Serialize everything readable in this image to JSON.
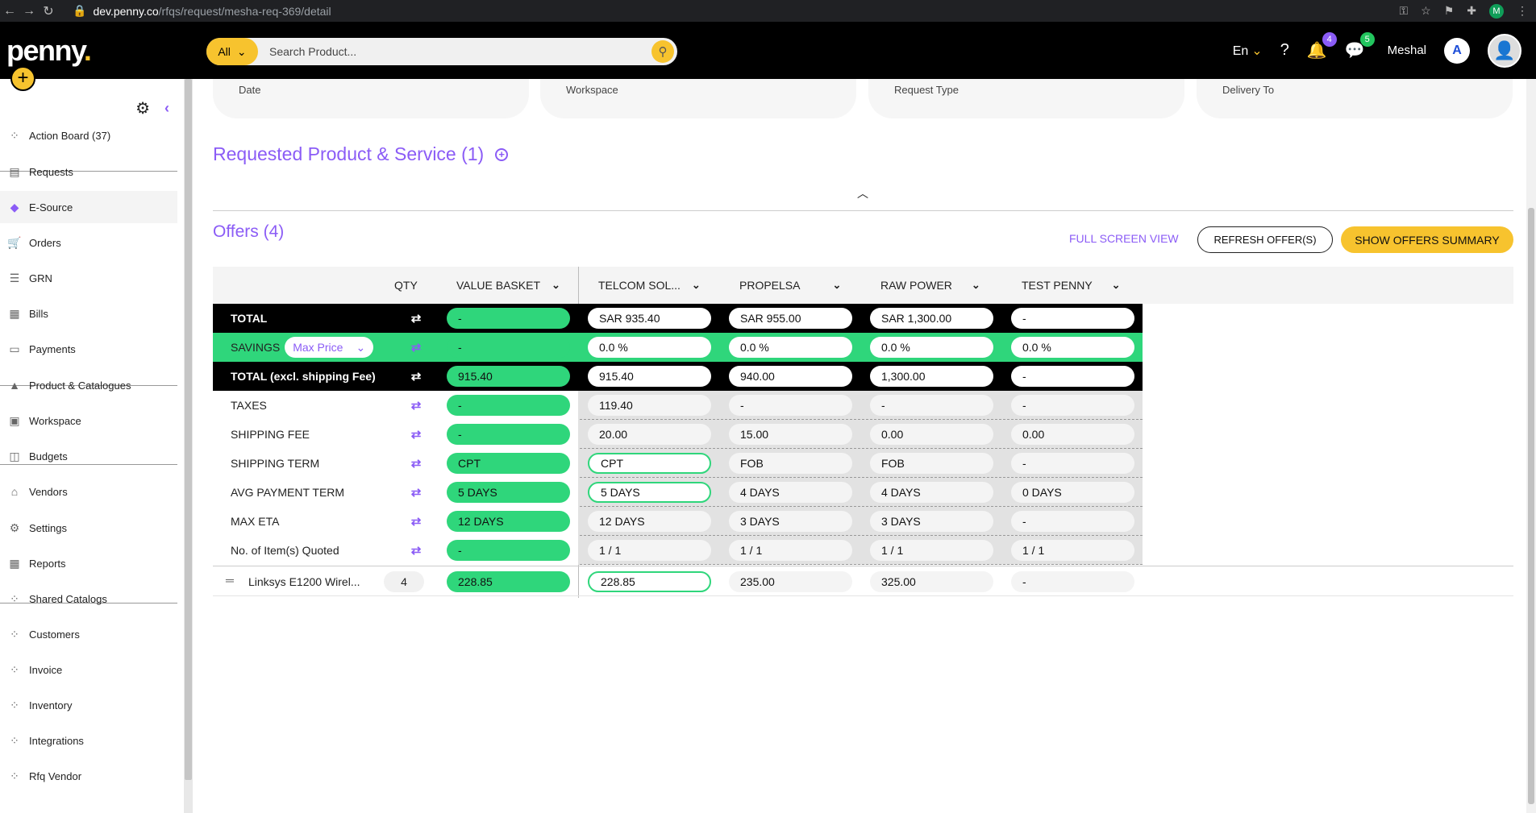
{
  "browser": {
    "url_host": "dev.penny.co",
    "url_path": "/rfqs/request/mesha-req-369/detail",
    "profile_initial": "M"
  },
  "app": {
    "logo": "penny",
    "search": {
      "category": "All",
      "placeholder": "Search Product..."
    },
    "language": "En",
    "notifications_count": "4",
    "messages_count": "5",
    "user_name": "Meshal"
  },
  "sidebar": {
    "items": [
      {
        "label": "Action Board (37)",
        "icon": "dots-icon"
      },
      {
        "label": "Requests",
        "icon": "document-icon"
      },
      {
        "label": "E-Source",
        "icon": "tag-icon"
      },
      {
        "label": "Orders",
        "icon": "cart-icon"
      },
      {
        "label": "GRN",
        "icon": "list-icon"
      },
      {
        "label": "Bills",
        "icon": "receipt-icon"
      },
      {
        "label": "Payments",
        "icon": "payment-icon"
      },
      {
        "label": "Product & Catalogues",
        "icon": "shapes-icon"
      },
      {
        "label": "Workspace",
        "icon": "briefcase-icon"
      },
      {
        "label": "Budgets",
        "icon": "budget-icon"
      },
      {
        "label": "Vendors",
        "icon": "store-icon"
      },
      {
        "label": "Settings",
        "icon": "gear-icon"
      },
      {
        "label": "Reports",
        "icon": "grid-icon"
      },
      {
        "label": "Shared Catalogs",
        "icon": "dots-icon"
      },
      {
        "label": "Customers",
        "icon": "dots-icon"
      },
      {
        "label": "Invoice",
        "icon": "dots-icon"
      },
      {
        "label": "Inventory",
        "icon": "dots-icon"
      },
      {
        "label": "Integrations",
        "icon": "dots-icon"
      },
      {
        "label": "Rfq Vendor",
        "icon": "dots-icon"
      }
    ]
  },
  "info_cards": [
    "Date",
    "Workspace",
    "Request Type",
    "Delivery To"
  ],
  "section": {
    "title": "Requested Product & Service (1)"
  },
  "offers": {
    "title": "Offers (4)",
    "full_screen": "FULL SCREEN VIEW",
    "refresh": "REFRESH OFFER(S)",
    "summary": "SHOW OFFERS SUMMARY",
    "headers": {
      "qty": "QTY",
      "value_basket": "VALUE BASKET",
      "vendors": [
        "TELCOM SOL...",
        "PROPELSA",
        "RAW POWER",
        "TEST PENNY"
      ]
    },
    "savings_tag": "Max Price",
    "rows": [
      {
        "label": "TOTAL",
        "vb": "-",
        "vals": [
          "SAR 935.40",
          "SAR 955.00",
          "SAR 1,300.00",
          "-"
        ]
      },
      {
        "label": "SAVINGS",
        "vb": "-",
        "vals": [
          "0.0 %",
          "0.0 %",
          "0.0 %",
          "0.0 %"
        ]
      },
      {
        "label": "TOTAL (excl. shipping Fee)",
        "vb": "915.40",
        "vals": [
          "915.40",
          "940.00",
          "1,300.00",
          "-"
        ]
      },
      {
        "label": "TAXES",
        "vb": "-",
        "vals": [
          "119.40",
          "-",
          "-",
          "-"
        ]
      },
      {
        "label": "SHIPPING FEE",
        "vb": "-",
        "vals": [
          "20.00",
          "15.00",
          "0.00",
          "0.00"
        ]
      },
      {
        "label": "SHIPPING TERM",
        "vb": "CPT",
        "vals": [
          "CPT",
          "FOB",
          "FOB",
          "-"
        ]
      },
      {
        "label": "AVG PAYMENT TERM",
        "vb": "5 DAYS",
        "vals": [
          "5 DAYS",
          "4 DAYS",
          "4 DAYS",
          "0 DAYS"
        ]
      },
      {
        "label": "MAX ETA",
        "vb": "12 DAYS",
        "vals": [
          "12 DAYS",
          "3 DAYS",
          "3 DAYS",
          "-"
        ]
      },
      {
        "label": "No. of Item(s) Quoted",
        "vb": "-",
        "vals": [
          "1 / 1",
          "1 / 1",
          "1 / 1",
          "1 / 1"
        ]
      }
    ],
    "item": {
      "name": "Linksys E1200 Wirel...",
      "qty": "4",
      "vb": "228.85",
      "vals": [
        "228.85",
        "235.00",
        "325.00",
        "-"
      ]
    }
  }
}
